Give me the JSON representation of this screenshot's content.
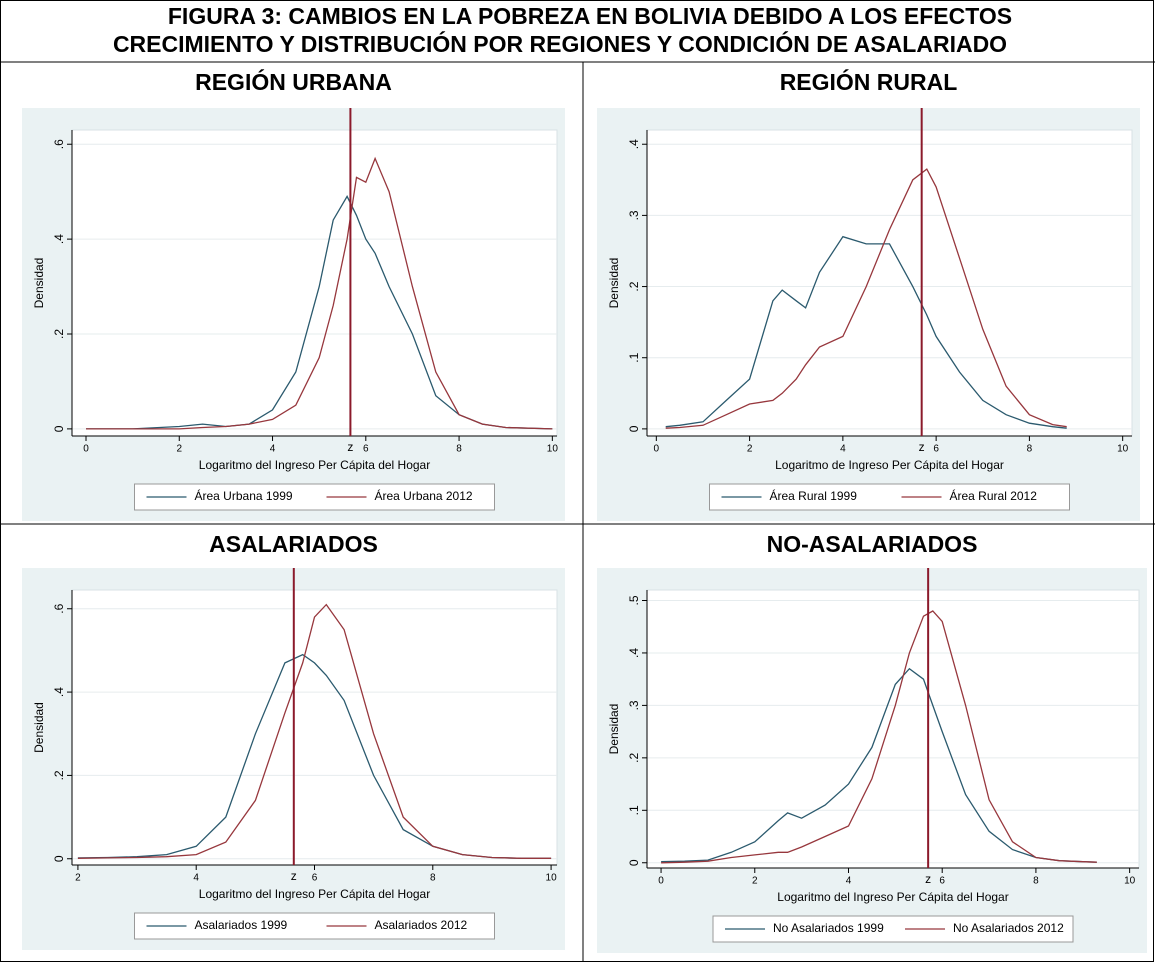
{
  "title": [
    "FIGURA 3: CAMBIOS EN LA POBREZA EN BOLIVIA DEBIDO A LOS EFECTOS",
    "CRECIMIENTO Y DISTRIBUCIÓN POR REGIONES Y CONDICIÓN DE ASALARIADO"
  ],
  "chart_data": [
    {
      "type": "line",
      "title": "REGIÓN URBANA",
      "xlabel": "Logaritmo del Ingreso Per Cápita del Hogar",
      "ylabel": "Densidad",
      "x": [
        0,
        1,
        2,
        2.5,
        3,
        3.5,
        4,
        4.5,
        5,
        5.3,
        5.6,
        5.8,
        6,
        6.2,
        6.5,
        7,
        7.5,
        8,
        8.5,
        9,
        10
      ],
      "series": [
        {
          "name": "Área Urbana 1999",
          "color": "#2b5a6e",
          "values": [
            0,
            0,
            0.005,
            0.01,
            0.005,
            0.01,
            0.04,
            0.12,
            0.3,
            0.44,
            0.49,
            0.45,
            0.4,
            0.37,
            0.3,
            0.2,
            0.07,
            0.03,
            0.01,
            0.003,
            0
          ]
        },
        {
          "name": "Área Urbana 2012",
          "color": "#97373d",
          "values": [
            0,
            0,
            0,
            0.003,
            0.005,
            0.01,
            0.02,
            0.05,
            0.15,
            0.26,
            0.4,
            0.53,
            0.52,
            0.57,
            0.5,
            0.3,
            0.12,
            0.03,
            0.01,
            0.003,
            0
          ]
        }
      ],
      "vline": {
        "x": 5.67,
        "label": "z",
        "color": "#8b1a2b"
      },
      "xlim": [
        -0.3,
        10.1
      ],
      "ylim": [
        -0.015,
        0.63
      ],
      "xticks": [
        0,
        2,
        4,
        6,
        8,
        10
      ],
      "yticks": [
        0,
        {
          "value": 0.2,
          "label": ".2"
        },
        {
          "value": 0.4,
          "label": ".4"
        },
        {
          "value": 0.6,
          "label": ".6"
        }
      ],
      "grid": true
    },
    {
      "type": "line",
      "title": "REGIÓN RURAL",
      "xlabel": "Logaritmo de Ingreso Per Cápita del Hogar",
      "ylabel": "Densidad",
      "x": [
        0.2,
        0.5,
        1,
        1.5,
        2,
        2.5,
        2.7,
        3,
        3.2,
        3.5,
        4,
        4.5,
        5,
        5.5,
        5.8,
        6,
        6.5,
        7,
        7.5,
        8,
        8.5,
        8.8
      ],
      "series": [
        {
          "name": "Área Rural 1999",
          "color": "#2b5a6e",
          "values": [
            0.003,
            0.005,
            0.01,
            0.04,
            0.07,
            0.18,
            0.195,
            0.18,
            0.17,
            0.22,
            0.27,
            0.26,
            0.26,
            0.2,
            0.16,
            0.13,
            0.08,
            0.04,
            0.02,
            0.008,
            0.003,
            0.001
          ]
        },
        {
          "name": "Área Rural 2012",
          "color": "#97373d",
          "values": [
            0.001,
            0.002,
            0.005,
            0.02,
            0.035,
            0.04,
            0.05,
            0.07,
            0.09,
            0.115,
            0.13,
            0.2,
            0.28,
            0.35,
            0.365,
            0.34,
            0.24,
            0.14,
            0.06,
            0.02,
            0.006,
            0.003
          ]
        }
      ],
      "vline": {
        "x": 5.69,
        "label": "z",
        "color": "#8b1a2b"
      },
      "xlim": [
        -0.2,
        10.2
      ],
      "ylim": [
        -0.01,
        0.42
      ],
      "xticks": [
        0,
        2,
        4,
        6,
        8,
        10
      ],
      "yticks": [
        0,
        {
          "value": 0.1,
          "label": ".1"
        },
        {
          "value": 0.2,
          "label": ".2"
        },
        {
          "value": 0.3,
          "label": ".3"
        },
        {
          "value": 0.4,
          "label": ".4"
        }
      ],
      "grid": true
    },
    {
      "type": "line",
      "title": "ASALARIADOS",
      "xlabel": "Logaritmo del Ingreso Per Cápita del Hogar",
      "ylabel": "Densidad",
      "x": [
        2,
        2.5,
        3,
        3.5,
        4,
        4.5,
        5,
        5.5,
        5.8,
        6,
        6.2,
        6.5,
        7,
        7.5,
        8,
        8.5,
        9,
        9.5,
        10
      ],
      "series": [
        {
          "name": "Asalariados 1999",
          "color": "#2b5a6e",
          "values": [
            0.002,
            0.003,
            0.005,
            0.01,
            0.03,
            0.1,
            0.3,
            0.47,
            0.49,
            0.47,
            0.44,
            0.38,
            0.2,
            0.07,
            0.03,
            0.01,
            0.003,
            0.001,
            0.001
          ]
        },
        {
          "name": "Asalariados 2012",
          "color": "#97373d",
          "values": [
            0.001,
            0.002,
            0.003,
            0.005,
            0.01,
            0.04,
            0.14,
            0.35,
            0.47,
            0.58,
            0.61,
            0.55,
            0.3,
            0.1,
            0.03,
            0.01,
            0.003,
            0.001,
            0.001
          ]
        }
      ],
      "vline": {
        "x": 5.65,
        "label": "z",
        "color": "#8b1a2b"
      },
      "xlim": [
        1.9,
        10.1
      ],
      "ylim": [
        -0.015,
        0.645
      ],
      "xticks": [
        2,
        4,
        6,
        8,
        10
      ],
      "yticks": [
        0,
        {
          "value": 0.2,
          "label": ".2"
        },
        {
          "value": 0.4,
          "label": ".4"
        },
        {
          "value": 0.6,
          "label": ".6"
        }
      ],
      "grid": true
    },
    {
      "type": "line",
      "title": "NO-ASALARIADOS",
      "xlabel": "Logaritmo del Ingreso Per Cápita del Hogar",
      "ylabel": "Densidad",
      "x": [
        0,
        0.5,
        1,
        1.5,
        2,
        2.5,
        2.7,
        3,
        3.5,
        4,
        4.5,
        5,
        5.3,
        5.6,
        5.8,
        6,
        6.5,
        7,
        7.5,
        8,
        8.5,
        9,
        9.3
      ],
      "series": [
        {
          "name": "No Asalariados 1999",
          "color": "#2b5a6e",
          "values": [
            0.002,
            0.003,
            0.005,
            0.02,
            0.04,
            0.08,
            0.095,
            0.085,
            0.11,
            0.15,
            0.22,
            0.34,
            0.37,
            0.35,
            0.3,
            0.25,
            0.13,
            0.06,
            0.025,
            0.01,
            0.004,
            0.002,
            0.001
          ]
        },
        {
          "name": "No Asalariados 2012",
          "color": "#97373d",
          "values": [
            0,
            0.001,
            0.003,
            0.01,
            0.015,
            0.02,
            0.02,
            0.03,
            0.05,
            0.07,
            0.16,
            0.3,
            0.4,
            0.47,
            0.48,
            0.46,
            0.3,
            0.12,
            0.04,
            0.01,
            0.004,
            0.002,
            0.001
          ]
        }
      ],
      "vline": {
        "x": 5.7,
        "label": "z",
        "color": "#8b1a2b"
      },
      "xlim": [
        -0.3,
        10.2
      ],
      "ylim": [
        -0.01,
        0.52
      ],
      "xticks": [
        0,
        2,
        4,
        6,
        8,
        10
      ],
      "yticks": [
        0,
        {
          "value": 0.1,
          "label": ".1"
        },
        {
          "value": 0.2,
          "label": ".2"
        },
        {
          "value": 0.3,
          "label": ".3"
        },
        {
          "value": 0.4,
          "label": ".4"
        },
        {
          "value": 0.5,
          "label": ".5"
        }
      ],
      "grid": true
    }
  ]
}
